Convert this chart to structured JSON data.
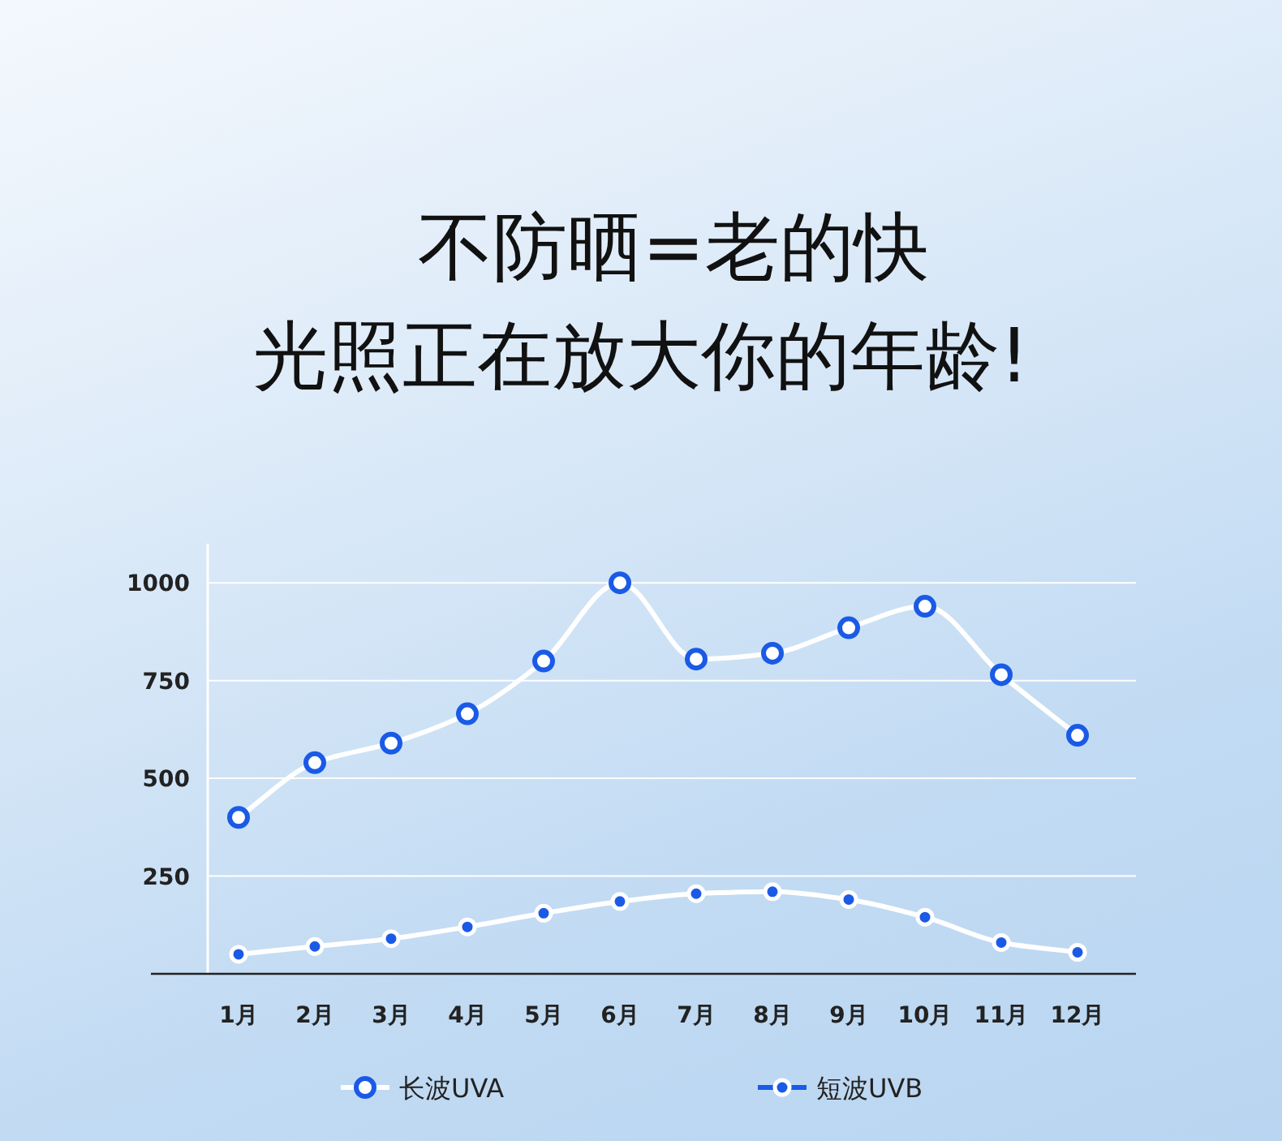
{
  "chart_data": {
    "type": "line",
    "title": "不防晒=老的快",
    "subtitle": "光照正在放大你的年龄!",
    "categories": [
      "1月",
      "2月",
      "3月",
      "4月",
      "5月",
      "6月",
      "7月",
      "8月",
      "9月",
      "10月",
      "11月",
      "12月"
    ],
    "series": [
      {
        "name": "长波UVA",
        "color": "#1a5ae6",
        "marker": "circle",
        "values": [
          400,
          540,
          590,
          665,
          800,
          1000,
          805,
          820,
          885,
          940,
          765,
          610
        ]
      },
      {
        "name": "短波UVB",
        "color": "#1a5ae6",
        "marker": "circle",
        "values": [
          50,
          70,
          90,
          120,
          155,
          185,
          205,
          210,
          190,
          145,
          80,
          55
        ]
      }
    ],
    "ylim": [
      0,
      1100
    ],
    "yticks": [
      250,
      500,
      750,
      1000
    ],
    "grid": "y",
    "legend": "bottom"
  }
}
